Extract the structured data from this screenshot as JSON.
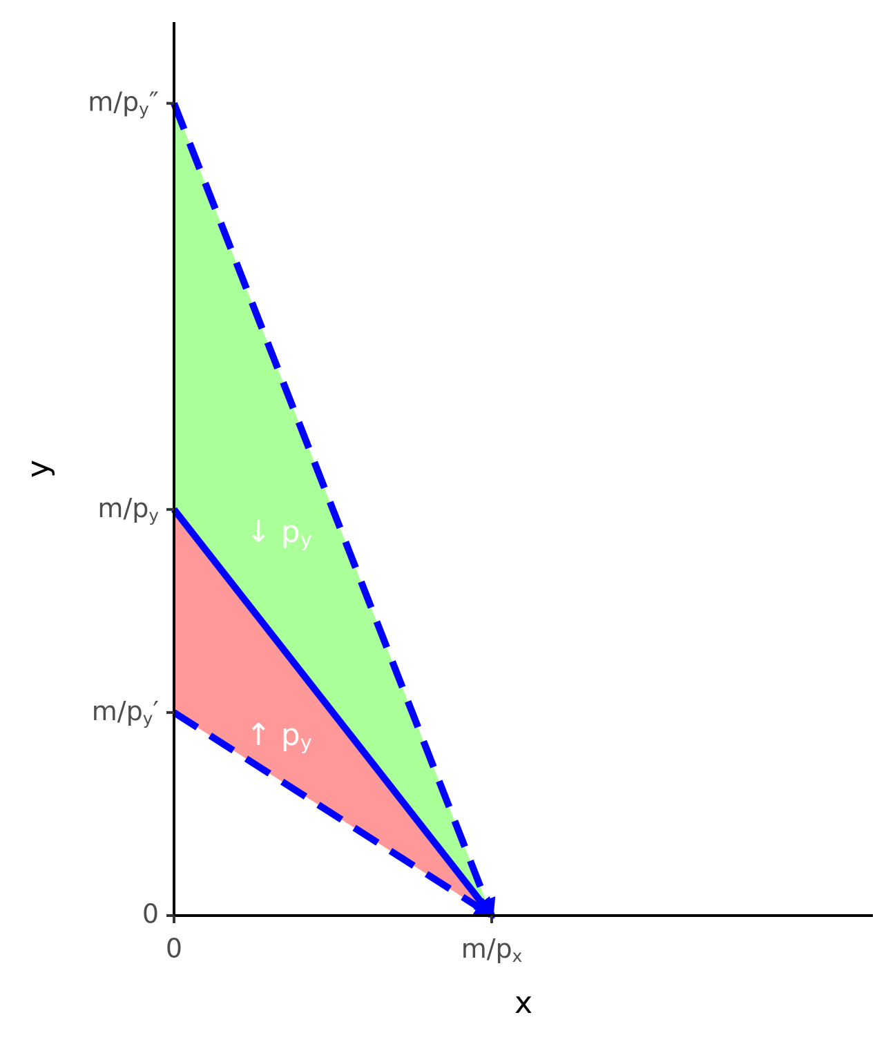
{
  "chart_data": {
    "type": "line",
    "xlabel": "x",
    "ylabel": "y",
    "xlim": [
      0,
      22
    ],
    "ylim": [
      0,
      22
    ],
    "xticks": [
      0,
      {
        "value": 10,
        "label": "m/p",
        "subscript": "x"
      }
    ],
    "yticks": [
      0,
      {
        "value": 5,
        "label": "m/p",
        "subscript": "y",
        "suffix": "′"
      },
      {
        "value": 10,
        "label": "m/p",
        "subscript": "y"
      },
      {
        "value": 20,
        "label": "m/p",
        "subscript": "y",
        "suffix": "″"
      }
    ],
    "areas": [
      {
        "color": "#aaff99",
        "x": [
          0,
          10
        ],
        "upper": [
          20,
          0
        ],
        "lower": [
          10,
          0
        ]
      },
      {
        "color": "#ff9999",
        "x": [
          0,
          10
        ],
        "upper": [
          10,
          0
        ],
        "lower": [
          5,
          0
        ]
      }
    ],
    "series": [
      {
        "color": "#0000ff",
        "dashed": false,
        "x": [
          0,
          10
        ],
        "values": [
          10,
          0
        ]
      },
      {
        "color": "#0000ff",
        "dashed": true,
        "x": [
          0,
          10
        ],
        "values": [
          5,
          0
        ]
      },
      {
        "color": "#0000ff",
        "dashed": true,
        "x": [
          0,
          10
        ],
        "values": [
          20,
          0
        ]
      }
    ],
    "annotations": [
      {
        "text": "↓ p",
        "subscript": "y",
        "x": 3.3,
        "y": 9.4
      },
      {
        "text": "↑ p",
        "subscript": "y",
        "x": 3.3,
        "y": 4.4
      }
    ]
  }
}
